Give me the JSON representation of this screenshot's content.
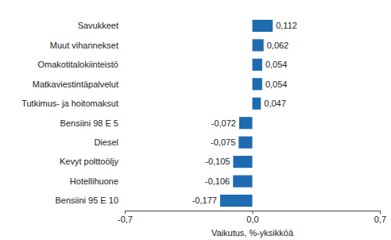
{
  "chart_data": {
    "type": "bar",
    "orientation": "horizontal",
    "categories": [
      "Savukkeet",
      "Muut vihannekset",
      "Omakotitalokiinteistö",
      "Matkaviestintäpalvelut",
      "Tutkimus- ja hoitomaksut",
      "Bensiini 98 E 5",
      "Diesel",
      "Kevyt polttoöljy",
      "Hotellihuone",
      "Bensiini 95 E 10"
    ],
    "values": [
      0.112,
      0.062,
      0.054,
      0.054,
      0.047,
      -0.072,
      -0.075,
      -0.105,
      -0.106,
      -0.177
    ],
    "value_labels": [
      "0,112",
      "0,062",
      "0,054",
      "0,054",
      "0,047",
      "-0,072",
      "-0,075",
      "-0,105",
      "-0,106",
      "-0,177"
    ],
    "data_labels": true,
    "color": "#1f6bb0",
    "x_label": "Vaikutus, %-yksikköä",
    "xlim": [
      -0.7,
      0.7
    ],
    "xticks": [
      {
        "value": -0.7,
        "label": "-0,7"
      },
      {
        "value": 0,
        "label": "0,0"
      },
      {
        "value": 0.7,
        "label": "0,7"
      }
    ],
    "grid": false
  }
}
